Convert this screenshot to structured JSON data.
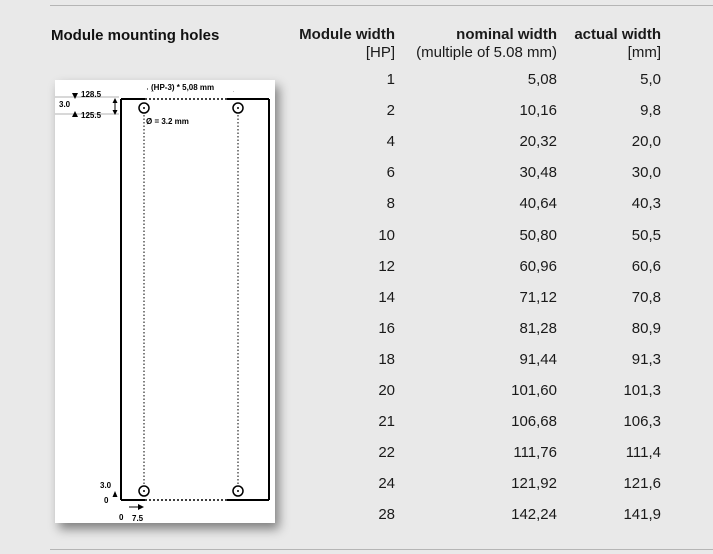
{
  "section_title": "Module mounting holes",
  "table": {
    "headers": {
      "col1": "Module width",
      "col2": "nominal width",
      "col3": "actual width"
    },
    "units": {
      "col1": "[HP]",
      "col2": "(multiple of 5.08 mm)",
      "col3": "[mm]"
    },
    "rows": [
      {
        "hp": "1",
        "nominal": "5,08",
        "actual": "5,0"
      },
      {
        "hp": "2",
        "nominal": "10,16",
        "actual": "9,8"
      },
      {
        "hp": "4",
        "nominal": "20,32",
        "actual": "20,0"
      },
      {
        "hp": "6",
        "nominal": "30,48",
        "actual": "30,0"
      },
      {
        "hp": "8",
        "nominal": "40,64",
        "actual": "40,3"
      },
      {
        "hp": "10",
        "nominal": "50,80",
        "actual": "50,5"
      },
      {
        "hp": "12",
        "nominal": "60,96",
        "actual": "60,6"
      },
      {
        "hp": "14",
        "nominal": "71,12",
        "actual": "70,8"
      },
      {
        "hp": "16",
        "nominal": "81,28",
        "actual": "80,9"
      },
      {
        "hp": "18",
        "nominal": "91,44",
        "actual": "91,3"
      },
      {
        "hp": "20",
        "nominal": "101,60",
        "actual": "101,3"
      },
      {
        "hp": "21",
        "nominal": "106,68",
        "actual": "106,3"
      },
      {
        "hp": "22",
        "nominal": "111,76",
        "actual": "111,4"
      },
      {
        "hp": "24",
        "nominal": "121,92",
        "actual": "121,6"
      },
      {
        "hp": "28",
        "nominal": "142,24",
        "actual": "141,9"
      }
    ]
  },
  "diagram": {
    "spacing_label": "(HP-3) * 5,08 mm",
    "top_dim_outer": "128.5",
    "top_dim_inner": "125.5",
    "top_gap": "3.0",
    "hole_diameter": "Ø = 3.2 mm",
    "bottom_gap": "3.0",
    "bottom_origin_y": "0",
    "bottom_origin_x": "0",
    "bottom_offset_x": "7.5"
  }
}
